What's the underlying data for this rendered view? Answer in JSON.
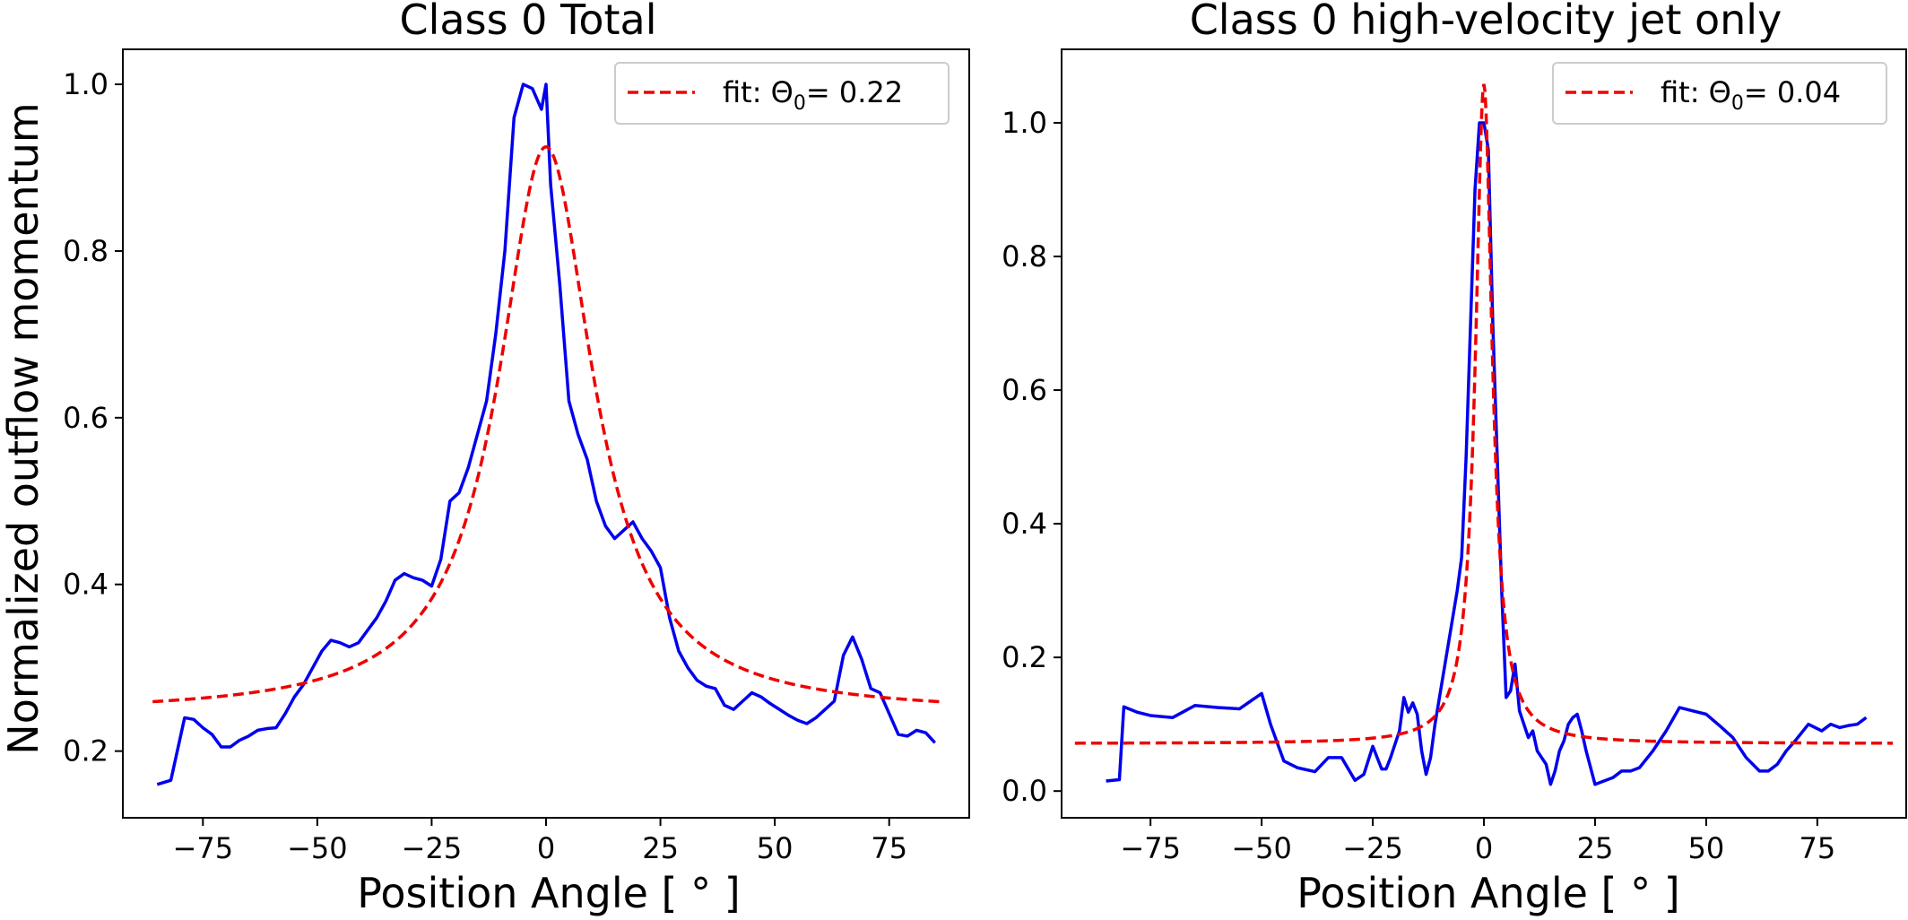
{
  "colors": {
    "data": "#0000ee",
    "fit": "#ee0000",
    "axis": "#000000",
    "legend_border": "#cccccc"
  },
  "shared": {
    "ylabel": "Normalized outflow momentum"
  },
  "chart_data": [
    {
      "id": "left",
      "type": "line",
      "title": "Class 0 Total",
      "xlabel": "Position Angle [ ° ]",
      "ylabel": "Normalized outflow momentum",
      "xlim": [
        -92.5,
        92.5
      ],
      "ylim": [
        0.12,
        1.042
      ],
      "xticks": [
        -75,
        -50,
        -25,
        0,
        25,
        50,
        75
      ],
      "xtick_labels": [
        "−75",
        "−50",
        "−25",
        "0",
        "25",
        "50",
        "75"
      ],
      "yticks": [
        0.2,
        0.4,
        0.6,
        0.8,
        1.0
      ],
      "ytick_labels": [
        "0.2",
        "0.4",
        "0.6",
        "0.8",
        "1.0"
      ],
      "legend": {
        "label_prefix": "fit: Θ",
        "label_sub": "0",
        "label_suffix": "= 0.22",
        "theta0": 0.22,
        "placement": "upper right"
      },
      "series": [
        {
          "name": "data",
          "style": "solid",
          "x": [
            -85,
            -82,
            -79,
            -77,
            -75,
            -73,
            -71,
            -69,
            -67,
            -65,
            -63,
            -61,
            -59,
            -57,
            -55,
            -53,
            -51,
            -49,
            -47,
            -45,
            -43,
            -41,
            -39,
            -37,
            -35,
            -33,
            -31,
            -29,
            -27,
            -25,
            -23,
            -21,
            -19,
            -17,
            -15,
            -13,
            -11,
            -9,
            -7,
            -5,
            -3,
            -1,
            0,
            1,
            3,
            5,
            7,
            9,
            11,
            13,
            15,
            17,
            19,
            21,
            23,
            25,
            27,
            29,
            31,
            33,
            35,
            37,
            39,
            41,
            43,
            45,
            47,
            49,
            51,
            53,
            55,
            57,
            59,
            61,
            63,
            65,
            67,
            69,
            71,
            73,
            75,
            77,
            79,
            81,
            83,
            85
          ],
          "y": [
            0.16,
            0.165,
            0.24,
            0.238,
            0.228,
            0.22,
            0.205,
            0.205,
            0.213,
            0.218,
            0.225,
            0.227,
            0.228,
            0.245,
            0.265,
            0.28,
            0.3,
            0.32,
            0.333,
            0.33,
            0.325,
            0.33,
            0.345,
            0.36,
            0.38,
            0.405,
            0.413,
            0.408,
            0.405,
            0.398,
            0.43,
            0.5,
            0.51,
            0.54,
            0.58,
            0.62,
            0.7,
            0.8,
            0.96,
            1.0,
            0.995,
            0.97,
            1.0,
            0.88,
            0.76,
            0.62,
            0.58,
            0.55,
            0.5,
            0.47,
            0.455,
            0.465,
            0.475,
            0.455,
            0.44,
            0.42,
            0.36,
            0.32,
            0.3,
            0.285,
            0.278,
            0.275,
            0.255,
            0.25,
            0.26,
            0.27,
            0.265,
            0.257,
            0.25,
            0.243,
            0.237,
            0.233,
            0.24,
            0.25,
            0.26,
            0.315,
            0.337,
            0.31,
            0.275,
            0.27,
            0.245,
            0.22,
            0.218,
            0.225,
            0.222,
            0.21
          ]
        },
        {
          "name": "fit",
          "style": "dashed",
          "baseline": 0.245,
          "peak": 0.925,
          "x_range": [
            -86,
            86
          ]
        }
      ]
    },
    {
      "id": "right",
      "type": "line",
      "title": "Class 0 high-velocity jet only",
      "xlabel": "Position Angle [ ° ]",
      "ylabel": "",
      "xlim": [
        -95,
        95
      ],
      "ylim": [
        -0.04,
        1.11
      ],
      "xticks": [
        -75,
        -50,
        -25,
        0,
        25,
        50,
        75
      ],
      "xtick_labels": [
        "−75",
        "−50",
        "−25",
        "0",
        "25",
        "50",
        "75"
      ],
      "yticks": [
        0.0,
        0.2,
        0.4,
        0.6,
        0.8,
        1.0
      ],
      "ytick_labels": [
        "0.0",
        "0.2",
        "0.4",
        "0.6",
        "0.8",
        "1.0"
      ],
      "legend": {
        "label_prefix": "fit: Θ",
        "label_sub": "0",
        "label_suffix": "= 0.04",
        "theta0": 0.04,
        "placement": "upper right"
      },
      "series": [
        {
          "name": "data",
          "style": "solid",
          "x": [
            -85,
            -82,
            -81,
            -78,
            -75,
            -70,
            -65,
            -60,
            -55,
            -50,
            -48,
            -45,
            -42,
            -38,
            -35,
            -32,
            -29,
            -27,
            -25,
            -23,
            -22,
            -21,
            -19,
            -18,
            -17,
            -16,
            -15,
            -14,
            -13,
            -12,
            -11,
            -10,
            -9,
            -8,
            -7,
            -6,
            -5,
            -4,
            -3,
            -2,
            -1,
            0,
            1,
            2,
            3,
            4,
            5,
            6,
            7,
            8,
            9,
            10,
            11,
            12,
            13,
            14,
            15,
            16,
            17,
            18,
            19,
            20,
            21,
            22,
            23,
            24,
            25,
            27,
            29,
            31,
            33,
            35,
            38,
            41,
            44,
            47,
            50,
            53,
            56,
            59,
            62,
            64,
            66,
            68,
            70,
            73,
            76,
            78,
            80,
            82,
            84,
            86
          ],
          "y": [
            0.015,
            0.017,
            0.126,
            0.118,
            0.113,
            0.11,
            0.128,
            0.125,
            0.123,
            0.146,
            0.1,
            0.045,
            0.035,
            0.029,
            0.05,
            0.05,
            0.016,
            0.025,
            0.067,
            0.033,
            0.033,
            0.05,
            0.09,
            0.14,
            0.118,
            0.132,
            0.115,
            0.06,
            0.025,
            0.05,
            0.1,
            0.14,
            0.18,
            0.22,
            0.26,
            0.3,
            0.35,
            0.5,
            0.7,
            0.9,
            1.0,
            1.0,
            0.96,
            0.7,
            0.5,
            0.3,
            0.14,
            0.15,
            0.19,
            0.12,
            0.1,
            0.08,
            0.09,
            0.06,
            0.05,
            0.04,
            0.01,
            0.03,
            0.06,
            0.075,
            0.1,
            0.11,
            0.115,
            0.09,
            0.06,
            0.035,
            0.01,
            0.015,
            0.02,
            0.03,
            0.03,
            0.035,
            0.06,
            0.09,
            0.125,
            0.12,
            0.115,
            0.098,
            0.08,
            0.05,
            0.03,
            0.03,
            0.04,
            0.06,
            0.075,
            0.1,
            0.09,
            0.1,
            0.095,
            0.098,
            0.1,
            0.11
          ],
          "x_range": [
            -85,
            86
          ]
        },
        {
          "name": "fit",
          "style": "dashed",
          "baseline": 0.071,
          "peak": 1.058,
          "x_range": [
            -92,
            92
          ]
        }
      ]
    }
  ]
}
